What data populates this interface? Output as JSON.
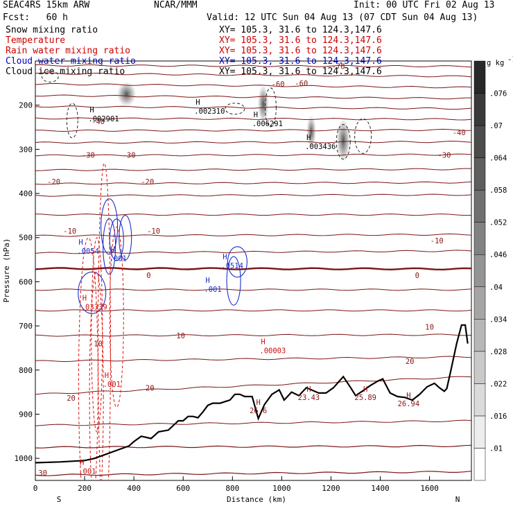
{
  "header": {
    "model": "SEAC4RS 15km ARW",
    "org": "NCAR/MMM",
    "init": "Init: 00 UTC Fri 02 Aug 13",
    "fcst": "Fcst:   60 h",
    "valid": "Valid: 12 UTC Sun 04 Aug 13 (07 CDT Sun 04 Aug 13)",
    "xy": "XY= 105.3, 31.6 to 124.3,147.6"
  },
  "fields": [
    {
      "name": "Snow mixing ratio",
      "color": "#000000"
    },
    {
      "name": "Temperature",
      "color": "#cc0000"
    },
    {
      "name": "Rain water mixing ratio",
      "color": "#cc0000"
    },
    {
      "name": "Cloud water mixing ratio",
      "color": "#0000cc"
    },
    {
      "name": "Cloud ice mixing ratio",
      "color": "#000000"
    }
  ],
  "colorbar": {
    "unit": "g kg",
    "unit_exp": "-1",
    "labels": [
      ".01",
      ".016",
      ".022",
      ".028",
      ".034",
      ".04",
      ".046",
      ".052",
      ".058",
      ".064",
      ".07",
      ".076"
    ]
  },
  "chart_data": {
    "type": "cross-section",
    "xlabel": "Distance (km)",
    "ylabel": "Pressure (hPa)",
    "xlim": [
      0,
      1770
    ],
    "ylim": [
      1050,
      100
    ],
    "xticks": [
      0,
      200,
      400,
      600,
      800,
      1000,
      1200,
      1400,
      1600
    ],
    "yticks": [
      200,
      300,
      400,
      500,
      600,
      700,
      800,
      900,
      1000
    ],
    "left_end": "S",
    "right_end": "N",
    "temperature_labels": [
      {
        "text": "-60",
        "x": 985,
        "p": 152
      },
      {
        "text": "-60",
        "x": 1080,
        "p": 150
      },
      {
        "text": "-70",
        "x": 1230,
        "p": 112
      },
      {
        "text": "-40",
        "x": 255,
        "p": 237
      },
      {
        "text": "-40",
        "x": 1720,
        "p": 262
      },
      {
        "text": "-30",
        "x": 215,
        "p": 313
      },
      {
        "text": "-30",
        "x": 380,
        "p": 313
      },
      {
        "text": "-30",
        "x": 1660,
        "p": 313
      },
      {
        "text": "-20",
        "x": 75,
        "p": 373
      },
      {
        "text": "-20",
        "x": 455,
        "p": 373
      },
      {
        "text": "-10",
        "x": 140,
        "p": 485
      },
      {
        "text": "-10",
        "x": 480,
        "p": 485
      },
      {
        "text": "-10",
        "x": 1630,
        "p": 507
      },
      {
        "text": "0",
        "x": 460,
        "p": 585
      },
      {
        "text": "0",
        "x": 1550,
        "p": 585
      },
      {
        "text": "10",
        "x": 590,
        "p": 722
      },
      {
        "text": "10",
        "x": 1600,
        "p": 702
      },
      {
        "text": "10",
        "x": 255,
        "p": 740
      },
      {
        "text": "20",
        "x": 145,
        "p": 863
      },
      {
        "text": "20",
        "x": 465,
        "p": 840
      },
      {
        "text": "20",
        "x": 1520,
        "p": 780
      },
      {
        "text": "30",
        "x": 30,
        "p": 1033
      }
    ],
    "maxima": [
      {
        "field": "Snow mixing ratio",
        "value": ".002901",
        "x": 260,
        "p": 232
      },
      {
        "field": "Snow mixing ratio",
        "value": ".002310",
        "x": 690,
        "p": 215
      },
      {
        "field": "Snow mixing ratio",
        "value": ".006291",
        "x": 925,
        "p": 243
      },
      {
        "field": "Snow mixing ratio",
        "value": ".003436",
        "x": 1140,
        "p": 295
      },
      {
        "field": "Cloud water mixing ratio",
        "value": ".0514",
        "x": 800,
        "p": 565
      },
      {
        "field": "Cloud water mixing ratio",
        "value": ".001",
        "x": 730,
        "p": 618
      },
      {
        "field": "Cloud water mixing ratio",
        "value": ".001",
        "x": 345,
        "p": 548
      },
      {
        "field": "Cloud water mixing ratio",
        "value": ".0054",
        "x": 215,
        "p": 532
      },
      {
        "field": "Rain water mixing ratio",
        "value": ".03339",
        "x": 230,
        "p": 658
      },
      {
        "field": "Rain water mixing ratio",
        "value": ".00003",
        "x": 955,
        "p": 757
      },
      {
        "field": "Rain water mixing ratio",
        "value": ".001",
        "x": 320,
        "p": 833
      },
      {
        "field": "Rain water mixing ratio",
        "value": ".001",
        "x": 220,
        "p": 1030
      }
    ],
    "surface_labels": [
      {
        "text": "26.6",
        "x": 905,
        "p": 898
      },
      {
        "text": "23.43",
        "x": 1110,
        "p": 868
      },
      {
        "text": "25.89",
        "x": 1340,
        "p": 868
      },
      {
        "text": "26.94",
        "x": 1515,
        "p": 882
      }
    ],
    "terrain": [
      [
        0,
        1010
      ],
      [
        100,
        1008
      ],
      [
        200,
        1005
      ],
      [
        240,
        1000
      ],
      [
        290,
        990
      ],
      [
        340,
        980
      ],
      [
        380,
        972
      ],
      [
        400,
        962
      ],
      [
        430,
        950
      ],
      [
        470,
        955
      ],
      [
        500,
        940
      ],
      [
        540,
        936
      ],
      [
        580,
        915
      ],
      [
        600,
        915
      ],
      [
        620,
        905
      ],
      [
        640,
        905
      ],
      [
        660,
        908
      ],
      [
        680,
        895
      ],
      [
        700,
        880
      ],
      [
        720,
        875
      ],
      [
        750,
        875
      ],
      [
        790,
        868
      ],
      [
        810,
        855
      ],
      [
        830,
        855
      ],
      [
        850,
        860
      ],
      [
        880,
        860
      ],
      [
        905,
        910
      ],
      [
        930,
        878
      ],
      [
        960,
        855
      ],
      [
        990,
        845
      ],
      [
        1010,
        868
      ],
      [
        1040,
        850
      ],
      [
        1070,
        858
      ],
      [
        1100,
        840
      ],
      [
        1150,
        852
      ],
      [
        1180,
        852
      ],
      [
        1210,
        840
      ],
      [
        1250,
        815
      ],
      [
        1280,
        840
      ],
      [
        1300,
        858
      ],
      [
        1330,
        847
      ],
      [
        1360,
        835
      ],
      [
        1390,
        825
      ],
      [
        1410,
        820
      ],
      [
        1440,
        852
      ],
      [
        1470,
        860
      ],
      [
        1500,
        862
      ],
      [
        1530,
        868
      ],
      [
        1560,
        855
      ],
      [
        1590,
        838
      ],
      [
        1620,
        830
      ],
      [
        1640,
        840
      ],
      [
        1660,
        848
      ],
      [
        1670,
        842
      ],
      [
        1685,
        805
      ],
      [
        1710,
        740
      ],
      [
        1730,
        698
      ],
      [
        1745,
        698
      ],
      [
        1755,
        740
      ]
    ]
  }
}
